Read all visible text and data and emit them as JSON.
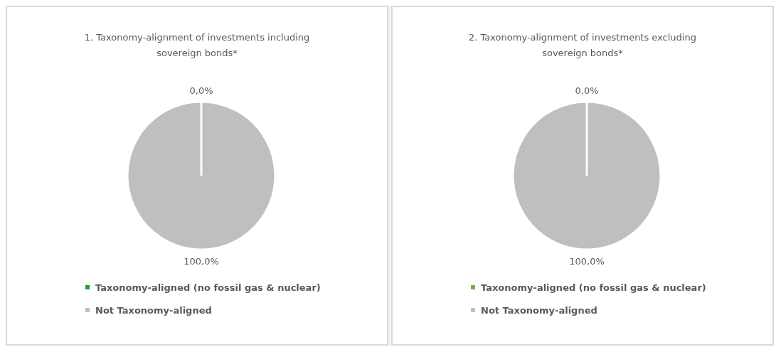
{
  "chart_data": [
    {
      "type": "pie",
      "title": "1. Taxonomy-alignment of investments including sovereign bonds*",
      "categories": [
        "Taxonomy-aligned (no fossil gas & nuclear)",
        "Not Taxonomy-aligned"
      ],
      "values": [
        0,
        100
      ],
      "colors": [
        "#1e9e3c",
        "#bfbfbf"
      ],
      "value_labels": [
        "0,0%",
        "100,0%"
      ],
      "legend": "bottom"
    },
    {
      "type": "pie",
      "title": "2. Taxonomy-alignment of investments excluding sovereign bonds*",
      "categories": [
        "Taxonomy-aligned (no fossil gas & nuclear)",
        "Not Taxonomy-aligned"
      ],
      "values": [
        0,
        100
      ],
      "colors": [
        "#70ad47",
        "#bfbfbf"
      ],
      "value_labels": [
        "0,0%",
        "100,0%"
      ],
      "legend": "bottom"
    }
  ]
}
